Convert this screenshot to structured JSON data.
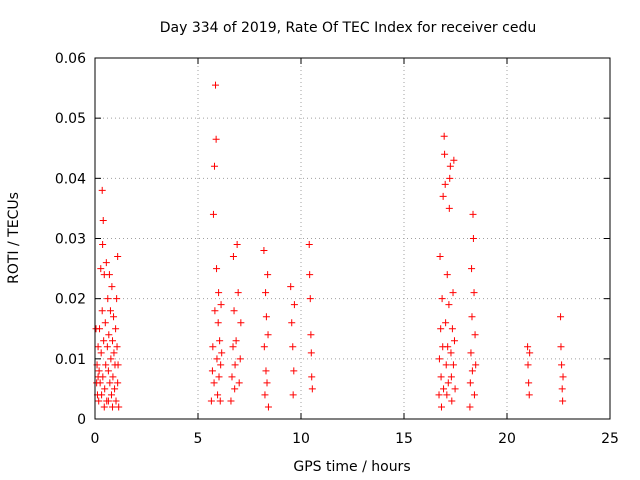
{
  "chart_data": {
    "type": "scatter",
    "title": "Day 334 of 2019, Rate Of TEC Index for receiver cedu",
    "xlabel": "GPS time / hours",
    "ylabel": "ROTI / TECUs",
    "xlim": [
      0,
      25
    ],
    "ylim": [
      0,
      0.06
    ],
    "x_ticks": [
      0,
      5,
      10,
      15,
      20,
      25
    ],
    "x_tick_labels": [
      "0",
      "5",
      "10",
      "15",
      "20",
      "25"
    ],
    "y_ticks": [
      0,
      0.01,
      0.02,
      0.03,
      0.04,
      0.05,
      0.06
    ],
    "y_tick_labels": [
      "0",
      "0.01",
      "0.02",
      "0.03",
      "0.04",
      "0.05",
      "0.06"
    ],
    "grid": true,
    "marker": "+",
    "color": "#ff0000",
    "series": [
      {
        "name": "ROTI",
        "points": [
          [
            0.05,
            0.015
          ],
          [
            0.08,
            0.006
          ],
          [
            0.1,
            0.009
          ],
          [
            0.12,
            0.004
          ],
          [
            0.15,
            0.012
          ],
          [
            0.18,
            0.003
          ],
          [
            0.2,
            0.008
          ],
          [
            0.22,
            0.015
          ],
          [
            0.25,
            0.006
          ],
          [
            0.28,
            0.025
          ],
          [
            0.3,
            0.011
          ],
          [
            0.32,
            0.004
          ],
          [
            0.35,
            0.018
          ],
          [
            0.35,
            0.038
          ],
          [
            0.37,
            0.029
          ],
          [
            0.38,
            0.007
          ],
          [
            0.4,
            0.033
          ],
          [
            0.42,
            0.013
          ],
          [
            0.45,
            0.024
          ],
          [
            0.47,
            0.005
          ],
          [
            0.5,
            0.016
          ],
          [
            0.52,
            0.009
          ],
          [
            0.55,
            0.026
          ],
          [
            0.57,
            0.003
          ],
          [
            0.6,
            0.012
          ],
          [
            0.62,
            0.02
          ],
          [
            0.65,
            0.008
          ],
          [
            0.67,
            0.014
          ],
          [
            0.7,
            0.024
          ],
          [
            0.72,
            0.006
          ],
          [
            0.75,
            0.018
          ],
          [
            0.77,
            0.01
          ],
          [
            0.8,
            0.004
          ],
          [
            0.82,
            0.022
          ],
          [
            0.85,
            0.013
          ],
          [
            0.87,
            0.007
          ],
          [
            0.9,
            0.017
          ],
          [
            0.92,
            0.011
          ],
          [
            0.95,
            0.005
          ],
          [
            0.97,
            0.009
          ],
          [
            1.0,
            0.015
          ],
          [
            1.02,
            0.003
          ],
          [
            1.05,
            0.02
          ],
          [
            1.07,
            0.012
          ],
          [
            1.1,
            0.027
          ],
          [
            1.1,
            0.006
          ],
          [
            1.12,
            0.009
          ],
          [
            1.15,
            0.002
          ],
          [
            0.15,
            0.007
          ],
          [
            0.45,
            0.002
          ],
          [
            0.65,
            0.003
          ],
          [
            0.85,
            0.002
          ],
          [
            5.65,
            0.003
          ],
          [
            5.7,
            0.008
          ],
          [
            5.72,
            0.012
          ],
          [
            5.75,
            0.034
          ],
          [
            5.78,
            0.006
          ],
          [
            5.8,
            0.042
          ],
          [
            5.82,
            0.018
          ],
          [
            5.85,
            0.0555
          ],
          [
            5.88,
            0.0465
          ],
          [
            5.9,
            0.025
          ],
          [
            5.92,
            0.01
          ],
          [
            5.95,
            0.004
          ],
          [
            5.98,
            0.016
          ],
          [
            6.0,
            0.021
          ],
          [
            6.02,
            0.007
          ],
          [
            6.05,
            0.013
          ],
          [
            6.08,
            0.003
          ],
          [
            6.1,
            0.009
          ],
          [
            6.12,
            0.019
          ],
          [
            6.15,
            0.011
          ],
          [
            6.6,
            0.003
          ],
          [
            6.65,
            0.007
          ],
          [
            6.7,
            0.012
          ],
          [
            6.72,
            0.027
          ],
          [
            6.75,
            0.018
          ],
          [
            6.78,
            0.005
          ],
          [
            6.8,
            0.009
          ],
          [
            6.85,
            0.013
          ],
          [
            6.9,
            0.029
          ],
          [
            6.95,
            0.021
          ],
          [
            7.0,
            0.006
          ],
          [
            7.05,
            0.01
          ],
          [
            7.08,
            0.016
          ],
          [
            8.2,
            0.028
          ],
          [
            8.22,
            0.012
          ],
          [
            8.25,
            0.004
          ],
          [
            8.28,
            0.021
          ],
          [
            8.3,
            0.008
          ],
          [
            8.32,
            0.017
          ],
          [
            8.35,
            0.006
          ],
          [
            8.38,
            0.024
          ],
          [
            8.4,
            0.014
          ],
          [
            8.42,
            0.002
          ],
          [
            9.5,
            0.022
          ],
          [
            9.55,
            0.016
          ],
          [
            9.6,
            0.012
          ],
          [
            9.62,
            0.004
          ],
          [
            9.65,
            0.008
          ],
          [
            9.68,
            0.019
          ],
          [
            10.4,
            0.029
          ],
          [
            10.42,
            0.024
          ],
          [
            10.45,
            0.02
          ],
          [
            10.48,
            0.014
          ],
          [
            10.5,
            0.011
          ],
          [
            10.52,
            0.007
          ],
          [
            10.55,
            0.005
          ],
          [
            16.7,
            0.004
          ],
          [
            16.72,
            0.01
          ],
          [
            16.75,
            0.027
          ],
          [
            16.78,
            0.015
          ],
          [
            16.8,
            0.007
          ],
          [
            16.82,
            0.002
          ],
          [
            16.85,
            0.02
          ],
          [
            16.88,
            0.012
          ],
          [
            16.9,
            0.037
          ],
          [
            16.92,
            0.005
          ],
          [
            16.95,
            0.047
          ],
          [
            16.97,
            0.044
          ],
          [
            17.0,
            0.039
          ],
          [
            17.02,
            0.016
          ],
          [
            17.05,
            0.009
          ],
          [
            17.08,
            0.004
          ],
          [
            17.1,
            0.024
          ],
          [
            17.12,
            0.012
          ],
          [
            17.15,
            0.006
          ],
          [
            17.18,
            0.019
          ],
          [
            17.2,
            0.035
          ],
          [
            17.22,
            0.04
          ],
          [
            17.25,
            0.042
          ],
          [
            17.28,
            0.011
          ],
          [
            17.3,
            0.007
          ],
          [
            17.32,
            0.003
          ],
          [
            17.35,
            0.015
          ],
          [
            17.38,
            0.021
          ],
          [
            17.4,
            0.009
          ],
          [
            17.42,
            0.043
          ],
          [
            17.45,
            0.013
          ],
          [
            17.48,
            0.005
          ],
          [
            18.2,
            0.002
          ],
          [
            18.22,
            0.006
          ],
          [
            18.25,
            0.011
          ],
          [
            18.28,
            0.025
          ],
          [
            18.3,
            0.017
          ],
          [
            18.32,
            0.008
          ],
          [
            18.35,
            0.034
          ],
          [
            18.37,
            0.03
          ],
          [
            18.4,
            0.021
          ],
          [
            18.42,
            0.004
          ],
          [
            18.45,
            0.014
          ],
          [
            18.48,
            0.009
          ],
          [
            21.0,
            0.012
          ],
          [
            21.02,
            0.009
          ],
          [
            21.05,
            0.006
          ],
          [
            21.08,
            0.004
          ],
          [
            21.1,
            0.011
          ],
          [
            22.6,
            0.017
          ],
          [
            22.62,
            0.012
          ],
          [
            22.65,
            0.009
          ],
          [
            22.68,
            0.005
          ],
          [
            22.7,
            0.003
          ],
          [
            22.72,
            0.007
          ]
        ]
      }
    ]
  }
}
